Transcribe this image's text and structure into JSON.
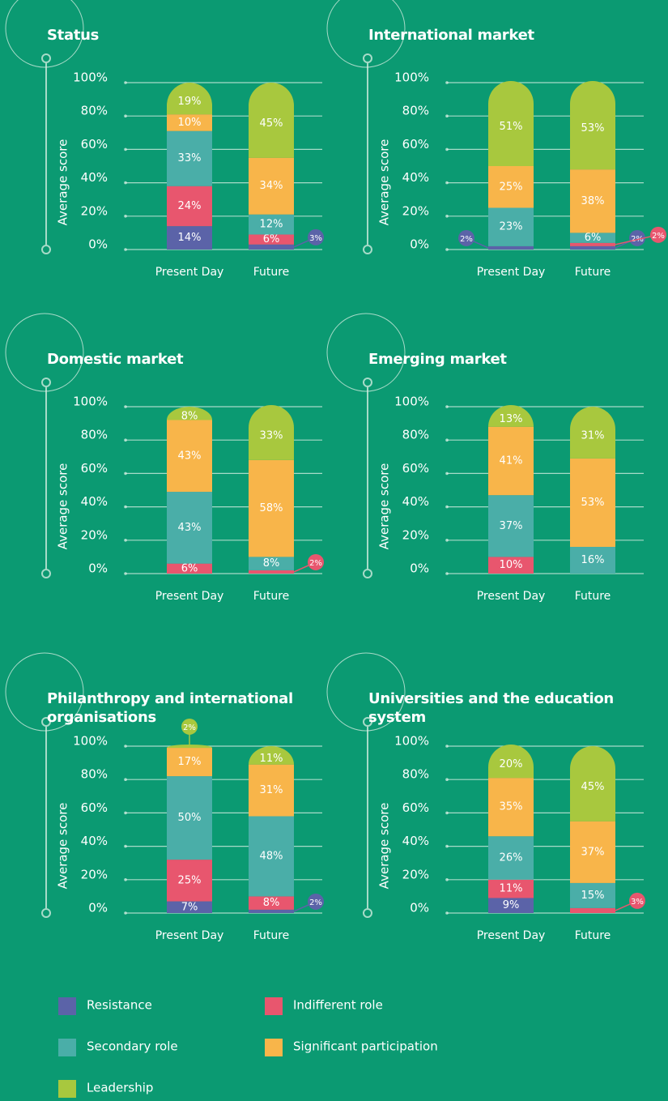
{
  "legend": [
    {
      "name": "Resistance",
      "color": "#5b63a8"
    },
    {
      "name": "Indifferent role",
      "color": "#e8566e"
    },
    {
      "name": "Secondary role",
      "color": "#4aaea8"
    },
    {
      "name": "Significant participation",
      "color": "#f8b54a"
    },
    {
      "name": "Leadership",
      "color": "#a8c83e"
    }
  ],
  "chart_data": [
    {
      "type": "bar",
      "stacked": true,
      "title": "Status",
      "y_label": "Average score",
      "categories": [
        "Present Day",
        "Future"
      ],
      "ylim": [
        0,
        100
      ],
      "yticks": [
        {
          "value": 0,
          "label": "0%"
        },
        {
          "value": 20,
          "label": "20%"
        },
        {
          "value": 40,
          "label": "40%"
        },
        {
          "value": 60,
          "label": "60%"
        },
        {
          "value": 80,
          "label": "80%"
        },
        {
          "value": 100,
          "label": "100%"
        }
      ],
      "series": [
        {
          "values": [
            14,
            3
          ],
          "value_labels": [
            "14%",
            "3%"
          ]
        },
        {
          "values": [
            24,
            6
          ],
          "value_labels": [
            "24%",
            "6%"
          ]
        },
        {
          "values": [
            33,
            12
          ],
          "value_labels": [
            "33%",
            "12%"
          ]
        },
        {
          "values": [
            10,
            34
          ],
          "value_labels": [
            "10%",
            "34%"
          ]
        },
        {
          "values": [
            19,
            45
          ],
          "value_labels": [
            "19%",
            "45%"
          ]
        }
      ]
    },
    {
      "type": "bar",
      "stacked": true,
      "title": "International market",
      "y_label": "Average score",
      "categories": [
        "Present Day",
        "Future"
      ],
      "ylim": [
        0,
        100
      ],
      "yticks": [
        {
          "value": 0,
          "label": "0%"
        },
        {
          "value": 20,
          "label": "20%"
        },
        {
          "value": 40,
          "label": "40%"
        },
        {
          "value": 60,
          "label": "60%"
        },
        {
          "value": 80,
          "label": "80%"
        },
        {
          "value": 100,
          "label": "100%"
        }
      ],
      "series": [
        {
          "values": [
            2,
            2
          ],
          "value_labels": [
            "2%",
            "2%"
          ]
        },
        {
          "values": [
            null,
            2
          ],
          "value_labels": [
            null,
            "2%"
          ]
        },
        {
          "values": [
            23,
            6
          ],
          "value_labels": [
            "23%",
            "6%"
          ]
        },
        {
          "values": [
            25,
            38
          ],
          "value_labels": [
            "25%",
            "38%"
          ]
        },
        {
          "values": [
            51,
            53
          ],
          "value_labels": [
            "51%",
            "53%"
          ]
        }
      ]
    },
    {
      "type": "bar",
      "stacked": true,
      "title": "Domestic market",
      "y_label": "Average score",
      "categories": [
        "Present Day",
        "Future"
      ],
      "ylim": [
        0,
        100
      ],
      "yticks": [
        {
          "value": 0,
          "label": "0%"
        },
        {
          "value": 20,
          "label": "20%"
        },
        {
          "value": 40,
          "label": "40%"
        },
        {
          "value": 60,
          "label": "60%"
        },
        {
          "value": 80,
          "label": "80%"
        },
        {
          "value": 100,
          "label": "100%"
        }
      ],
      "series": [
        {
          "values": [
            null,
            null
          ],
          "value_labels": [
            null,
            null
          ]
        },
        {
          "values": [
            6,
            2
          ],
          "value_labels": [
            "6%",
            "2%"
          ]
        },
        {
          "values": [
            43,
            8
          ],
          "value_labels": [
            "43%",
            "8%"
          ]
        },
        {
          "values": [
            43,
            58
          ],
          "value_labels": [
            "43%",
            "58%"
          ]
        },
        {
          "values": [
            8,
            33
          ],
          "value_labels": [
            "8%",
            "33%"
          ]
        }
      ]
    },
    {
      "type": "bar",
      "stacked": true,
      "title": "Emerging market",
      "y_label": "Average score",
      "categories": [
        "Present Day",
        "Future"
      ],
      "ylim": [
        0,
        100
      ],
      "yticks": [
        {
          "value": 0,
          "label": "0%"
        },
        {
          "value": 20,
          "label": "20%"
        },
        {
          "value": 40,
          "label": "40%"
        },
        {
          "value": 60,
          "label": "60%"
        },
        {
          "value": 80,
          "label": "80%"
        },
        {
          "value": 100,
          "label": "100%"
        }
      ],
      "series": [
        {
          "values": [
            null,
            null
          ],
          "value_labels": [
            null,
            null
          ]
        },
        {
          "values": [
            10,
            null
          ],
          "value_labels": [
            "10%",
            null
          ]
        },
        {
          "values": [
            37,
            16
          ],
          "value_labels": [
            "37%",
            "16%"
          ]
        },
        {
          "values": [
            41,
            53
          ],
          "value_labels": [
            "41%",
            "53%"
          ]
        },
        {
          "values": [
            13,
            31
          ],
          "value_labels": [
            "13%",
            "31%"
          ]
        }
      ]
    },
    {
      "type": "bar",
      "stacked": true,
      "title": "Philanthropy and international organisations",
      "y_label": "Average score",
      "categories": [
        "Present Day",
        "Future"
      ],
      "ylim": [
        0,
        100
      ],
      "yticks": [
        {
          "value": 0,
          "label": "0%"
        },
        {
          "value": 20,
          "label": "20%"
        },
        {
          "value": 40,
          "label": "40%"
        },
        {
          "value": 60,
          "label": "60%"
        },
        {
          "value": 80,
          "label": "80%"
        },
        {
          "value": 100,
          "label": "100%"
        }
      ],
      "series": [
        {
          "values": [
            7,
            2
          ],
          "value_labels": [
            "7%",
            "2%"
          ]
        },
        {
          "values": [
            25,
            8
          ],
          "value_labels": [
            "25%",
            "8%"
          ]
        },
        {
          "values": [
            50,
            48
          ],
          "value_labels": [
            "50%",
            "48%"
          ]
        },
        {
          "values": [
            17,
            31
          ],
          "value_labels": [
            "17%",
            "31%"
          ]
        },
        {
          "values": [
            2,
            11
          ],
          "value_labels": [
            "2%",
            "11%"
          ]
        }
      ]
    },
    {
      "type": "bar",
      "stacked": true,
      "title": "Universities and the education system",
      "y_label": "Average score",
      "categories": [
        "Present Day",
        "Future"
      ],
      "ylim": [
        0,
        100
      ],
      "yticks": [
        {
          "value": 0,
          "label": "0%"
        },
        {
          "value": 20,
          "label": "20%"
        },
        {
          "value": 40,
          "label": "40%"
        },
        {
          "value": 60,
          "label": "60%"
        },
        {
          "value": 80,
          "label": "80%"
        },
        {
          "value": 100,
          "label": "100%"
        }
      ],
      "series": [
        {
          "values": [
            9,
            null
          ],
          "value_labels": [
            "9%",
            null
          ]
        },
        {
          "values": [
            11,
            3
          ],
          "value_labels": [
            "11%",
            "3%"
          ]
        },
        {
          "values": [
            26,
            15
          ],
          "value_labels": [
            "26%",
            "15%"
          ]
        },
        {
          "values": [
            35,
            37
          ],
          "value_labels": [
            "35%",
            "37%"
          ]
        },
        {
          "values": [
            20,
            45
          ],
          "value_labels": [
            "20%",
            "45%"
          ]
        }
      ]
    }
  ]
}
